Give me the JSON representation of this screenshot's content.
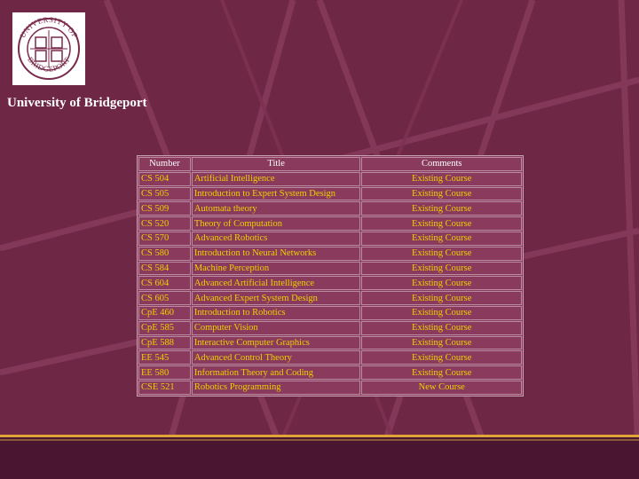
{
  "header": {
    "logo_icon": "university-seal-icon",
    "logo_text_top": "UNIVERSITY OF",
    "logo_text_bottom": "BRIDGEPORT",
    "org_name": "University of Bridgeport"
  },
  "colors": {
    "background": "#6e2745",
    "cell_text": "#f0d000",
    "header_text": "#ffffff",
    "accent_rule": "#e0a33a"
  },
  "table": {
    "headers": [
      "Number",
      "Title",
      "Comments"
    ],
    "rows": [
      [
        "CS 504",
        "Artificial Intelligence",
        "Existing Course"
      ],
      [
        "CS 505",
        "Introduction to Expert System Design",
        "Existing Course"
      ],
      [
        "CS 509",
        "Automata theory",
        "Existing Course"
      ],
      [
        "CS 520",
        "Theory of Computation",
        "Existing Course"
      ],
      [
        "CS 570",
        "Advanced Robotics",
        "Existing Course"
      ],
      [
        "CS 580",
        "Introduction to Neural Networks",
        "Existing Course"
      ],
      [
        "CS 584",
        "Machine Perception",
        "Existing Course"
      ],
      [
        "CS 604",
        "Advanced Artificial Intelligence",
        "Existing Course"
      ],
      [
        "CS 605",
        "Advanced Expert System Design",
        "Existing Course"
      ],
      [
        "CpE 460",
        "Introduction to Robotics",
        "Existing Course"
      ],
      [
        "CpE 585",
        "Computer Vision",
        "Existing Course"
      ],
      [
        "CpE 588",
        "Interactive Computer Graphics",
        "Existing Course"
      ],
      [
        "EE 545",
        "Advanced Control Theory",
        "Existing Course"
      ],
      [
        "EE 580",
        "Information Theory and Coding",
        "Existing Course"
      ],
      [
        "CSE 521",
        "Robotics Programming",
        "New Course"
      ]
    ]
  }
}
